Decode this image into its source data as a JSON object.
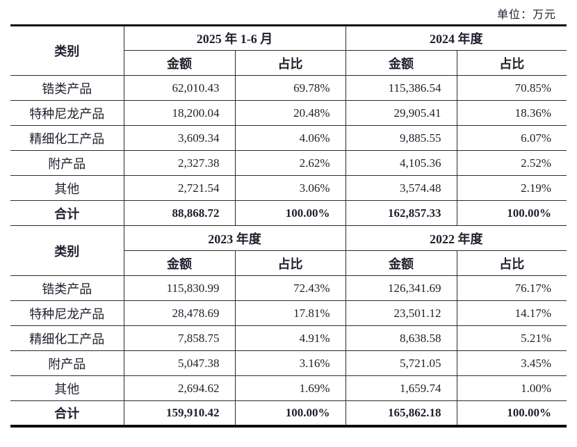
{
  "page": {
    "unit_label": "单位：万元"
  },
  "colors": {
    "background": "#ffffff",
    "text": "#20202e",
    "border_thin": "#2b2b2b",
    "border_thick": "#0c0c0c"
  },
  "sections": [
    {
      "category_header": "类别",
      "periods": [
        "2025 年 1-6 月",
        "2024 年度"
      ],
      "sub_headers": [
        "金额",
        "占比",
        "金额",
        "占比"
      ],
      "rows": [
        {
          "c": "锆类产品",
          "v": [
            "62,010.43",
            "69.78%",
            "115,386.54",
            "70.85%"
          ]
        },
        {
          "c": "特种尼龙产品",
          "v": [
            "18,200.04",
            "20.48%",
            "29,905.41",
            "18.36%"
          ]
        },
        {
          "c": "精细化工产品",
          "v": [
            "3,609.34",
            "4.06%",
            "9,885.55",
            "6.07%"
          ]
        },
        {
          "c": "附产品",
          "v": [
            "2,327.38",
            "2.62%",
            "4,105.36",
            "2.52%"
          ]
        },
        {
          "c": "其他",
          "v": [
            "2,721.54",
            "3.06%",
            "3,574.48",
            "2.19%"
          ]
        }
      ],
      "total": {
        "c": "合计",
        "v": [
          "88,868.72",
          "100.00%",
          "162,857.33",
          "100.00%"
        ]
      }
    },
    {
      "category_header": "类别",
      "periods": [
        "2023 年度",
        "2022 年度"
      ],
      "sub_headers": [
        "金额",
        "占比",
        "金额",
        "占比"
      ],
      "rows": [
        {
          "c": "锆类产品",
          "v": [
            "115,830.99",
            "72.43%",
            "126,341.69",
            "76.17%"
          ]
        },
        {
          "c": "特种尼龙产品",
          "v": [
            "28,478.69",
            "17.81%",
            "23,501.12",
            "14.17%"
          ]
        },
        {
          "c": "精细化工产品",
          "v": [
            "7,858.75",
            "4.91%",
            "8,638.58",
            "5.21%"
          ]
        },
        {
          "c": "附产品",
          "v": [
            "5,047.38",
            "3.16%",
            "5,721.05",
            "3.45%"
          ]
        },
        {
          "c": "其他",
          "v": [
            "2,694.62",
            "1.69%",
            "1,659.74",
            "1.00%"
          ]
        }
      ],
      "total": {
        "c": "合计",
        "v": [
          "159,910.42",
          "100.00%",
          "165,862.18",
          "100.00%"
        ]
      }
    }
  ]
}
